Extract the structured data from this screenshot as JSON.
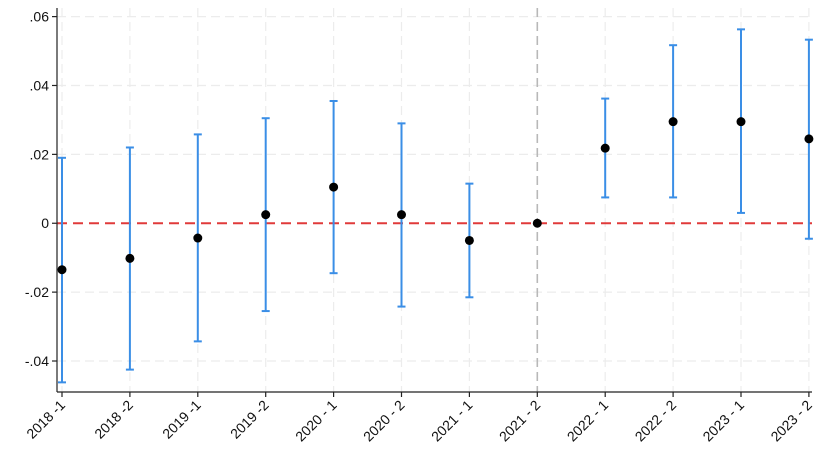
{
  "chart_data": {
    "type": "scatter",
    "title": "",
    "xlabel": "",
    "ylabel": "",
    "categories": [
      "2018 -1",
      "2018 -2",
      "2019 -1",
      "2019 -2",
      "2020 - 1",
      "2020 - 2",
      "2021 - 1",
      "2021 - 2",
      "2022 - 1",
      "2022 - 2",
      "2023 - 1",
      "2023 - 2"
    ],
    "series": [
      {
        "estimates": [
          -0.0135,
          -0.0102,
          -0.0043,
          0.0025,
          0.0105,
          0.0025,
          -0.005,
          0.0,
          0.0218,
          0.0295,
          0.0295,
          0.0245
        ],
        "ci_lower": [
          -0.0462,
          -0.0425,
          -0.0343,
          -0.0255,
          -0.0145,
          -0.0242,
          -0.0215,
          0.0,
          0.0075,
          0.0075,
          0.003,
          -0.0045
        ],
        "ci_upper": [
          0.019,
          0.022,
          0.0258,
          0.0305,
          0.0355,
          0.029,
          0.0115,
          0.0,
          0.0362,
          0.0517,
          0.0563,
          0.0533
        ]
      }
    ],
    "ylim": [
      -0.049,
      0.0625
    ],
    "y_ticks": [
      -0.04,
      -0.02,
      0,
      0.02,
      0.04,
      0.06
    ],
    "y_tick_labels": [
      "-.04",
      "-.02",
      "0",
      ".02",
      ".04",
      ".06"
    ],
    "reference_line_y": 0,
    "reference_line_x_category": "2021 - 2",
    "grid": true,
    "colors": {
      "point": "#000000",
      "error_bar": "#3a8ee6",
      "zero_line": "#e03a3a",
      "vertical_line": "#b8b8b8",
      "grid": "#ececec",
      "axis": "#222222"
    }
  }
}
